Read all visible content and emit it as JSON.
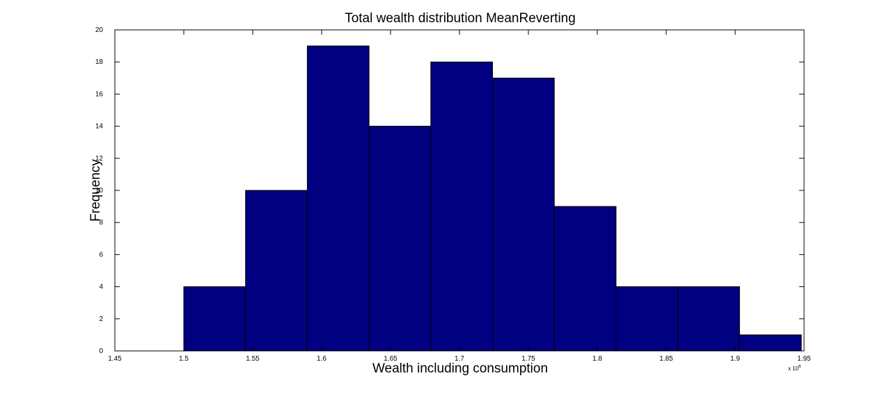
{
  "chart_data": {
    "type": "bar",
    "title": "Total wealth distribution MeanReverting",
    "xlabel": "Wealth including consumption",
    "ylabel": "Frequency",
    "x_multiplier_label": "x 10",
    "x_multiplier_exponent": "6",
    "xlim": [
      1.45,
      1.95
    ],
    "ylim": [
      0,
      20
    ],
    "xticks": [
      "1.45",
      "1.5",
      "1.55",
      "1.6",
      "1.65",
      "1.7",
      "1.75",
      "1.8",
      "1.85",
      "1.9",
      "1.95"
    ],
    "yticks": [
      "0",
      "2",
      "4",
      "6",
      "8",
      "10",
      "12",
      "14",
      "16",
      "18",
      "20"
    ],
    "bins": [
      {
        "x0": 1.5,
        "x1": 1.5448,
        "value": 4
      },
      {
        "x0": 1.5448,
        "x1": 1.5896,
        "value": 10
      },
      {
        "x0": 1.5896,
        "x1": 1.6344,
        "value": 19
      },
      {
        "x0": 1.6344,
        "x1": 1.6792,
        "value": 14
      },
      {
        "x0": 1.6792,
        "x1": 1.724,
        "value": 18
      },
      {
        "x0": 1.724,
        "x1": 1.7688,
        "value": 17
      },
      {
        "x0": 1.7688,
        "x1": 1.8136,
        "value": 9
      },
      {
        "x0": 1.8136,
        "x1": 1.8584,
        "value": 4
      },
      {
        "x0": 1.8584,
        "x1": 1.9032,
        "value": 4
      },
      {
        "x0": 1.9032,
        "x1": 1.948,
        "value": 1
      }
    ],
    "bar_color": "#000080",
    "bar_edge_color": "#000000",
    "grid": false
  }
}
